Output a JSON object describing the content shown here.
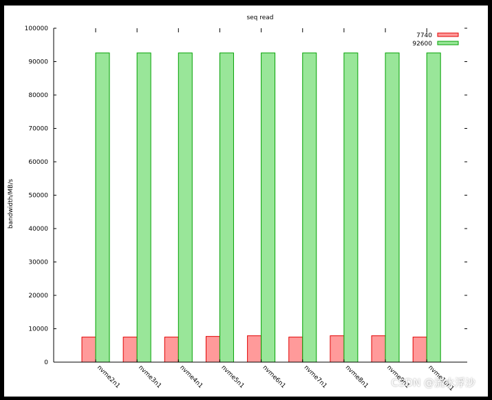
{
  "chart_data": {
    "type": "bar",
    "title": "seq read",
    "xlabel": "",
    "ylabel": "bandwidth/MB/s",
    "ylim": [
      0,
      100000
    ],
    "yticks": [
      0,
      10000,
      20000,
      30000,
      40000,
      50000,
      60000,
      70000,
      80000,
      90000,
      100000
    ],
    "categories": [
      "nvme2n1",
      "nvme3n1",
      "nvme4n1",
      "nvme5n1",
      "nvme6n1",
      "nvme7n1",
      "nvme8n1",
      "nvme9n1",
      "nvme10n1"
    ],
    "series": [
      {
        "name": "7740",
        "color": "#ff9a9a",
        "edge": "#e00000",
        "values": [
          7500,
          7500,
          7500,
          7700,
          7900,
          7500,
          7900,
          7900,
          7500
        ]
      },
      {
        "name": "92600",
        "color": "#99e699",
        "edge": "#00a000",
        "values": [
          92600,
          92600,
          92600,
          92600,
          92600,
          92600,
          92600,
          92600,
          92600
        ]
      }
    ],
    "legend": "top-right",
    "grid": false
  },
  "watermark": "CSDN @流水浮沙"
}
